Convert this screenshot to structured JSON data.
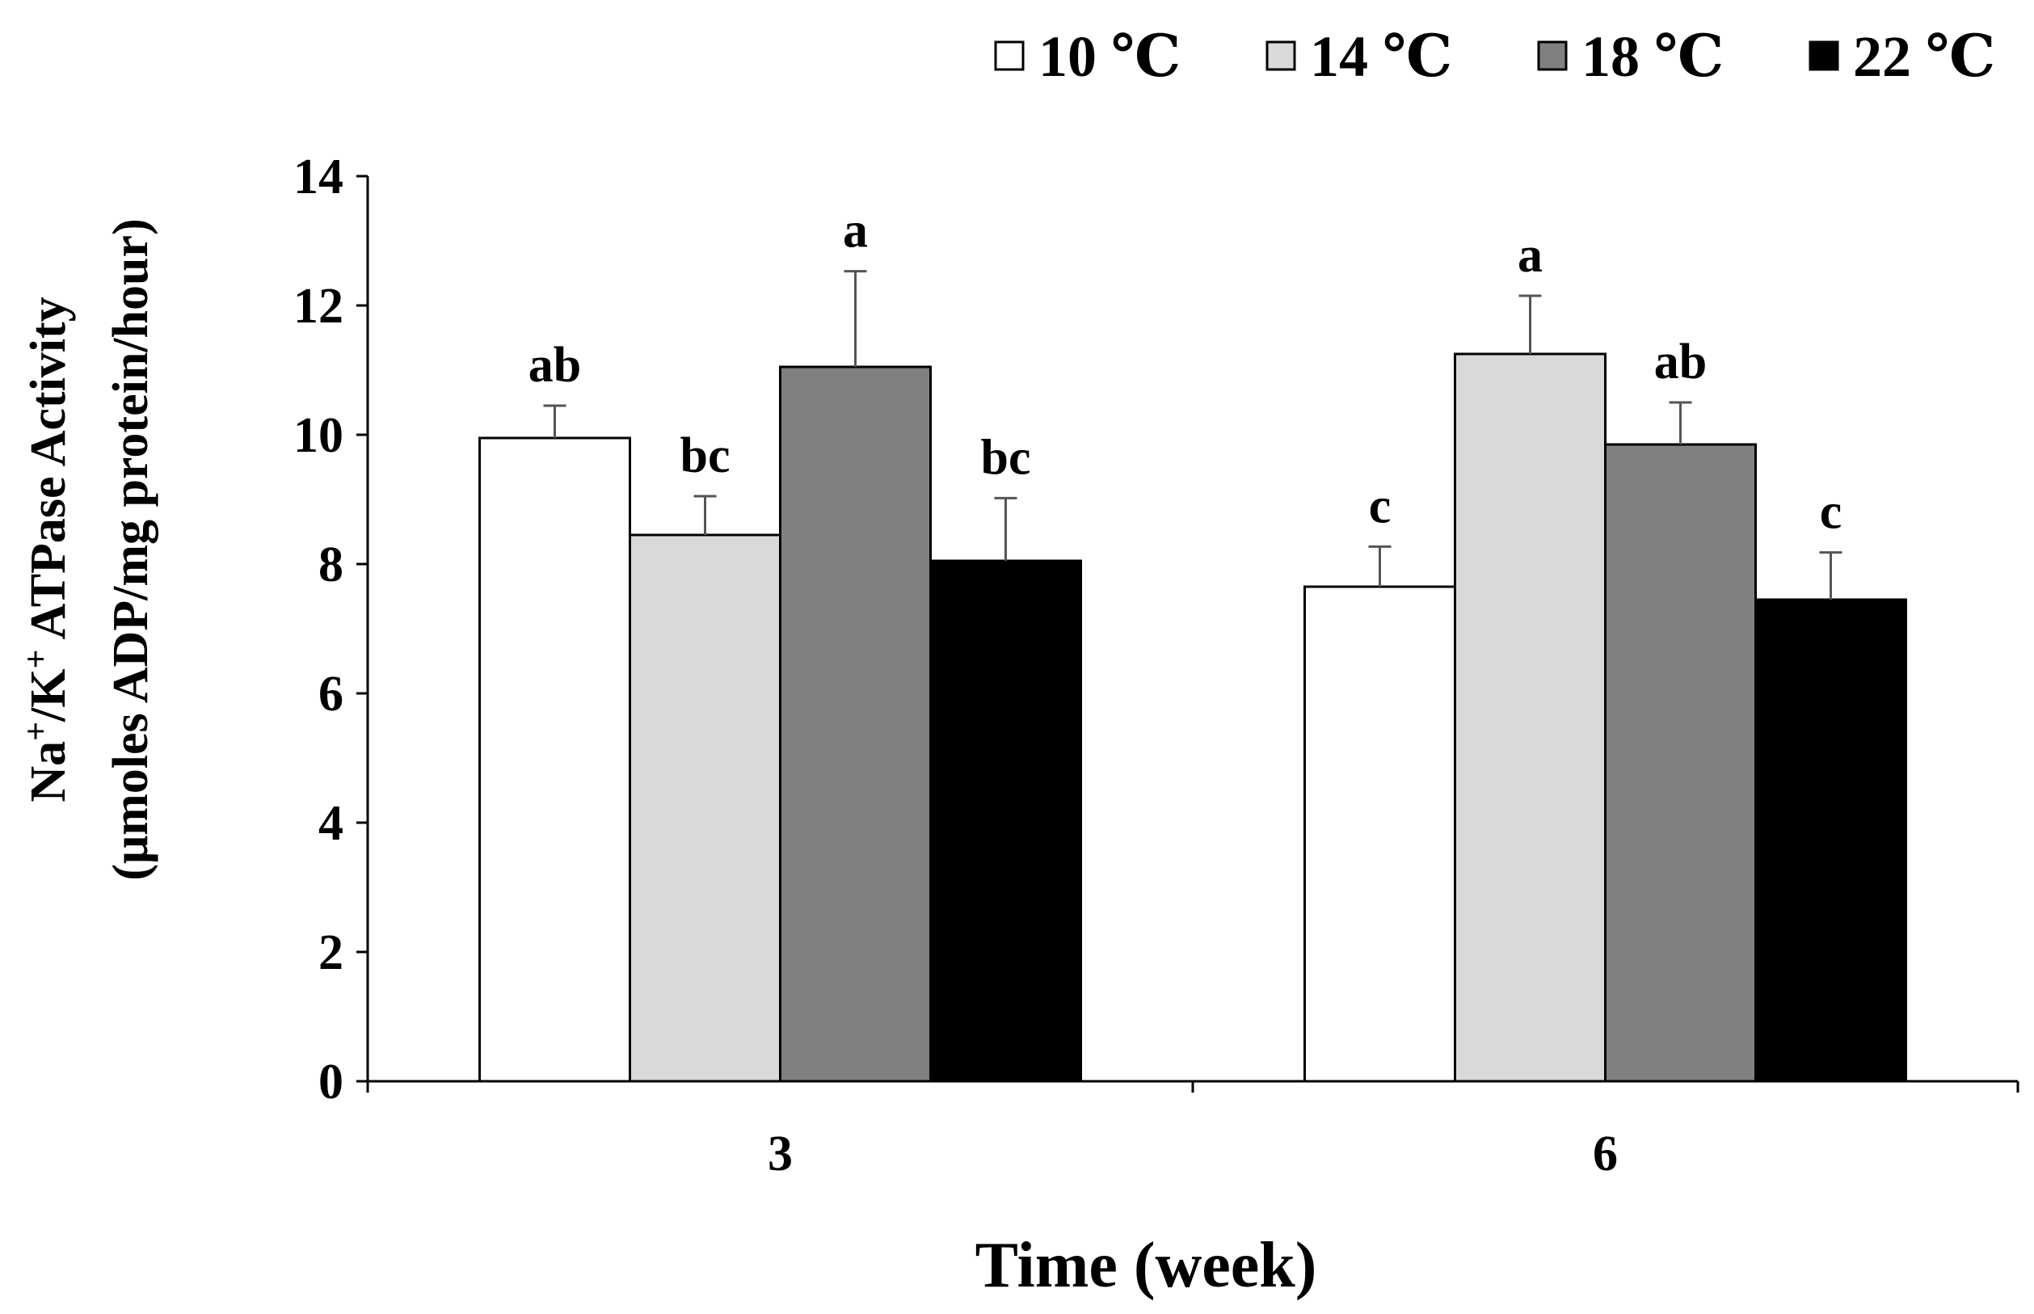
{
  "chart_data": {
    "type": "bar",
    "title": "",
    "xlabel": "Time (week)",
    "ylabel": {
      "line1": {
        "pre": "Na",
        "sup1": "+",
        "mid": "/K",
        "sup2": "+",
        "post": " ATPase Activity"
      },
      "line2": "(μmoles ADP/mg protein/hour)"
    },
    "ylim": [
      0,
      14
    ],
    "yticks": [
      0,
      2,
      4,
      6,
      8,
      10,
      12,
      14
    ],
    "categories": [
      "3",
      "6"
    ],
    "legend_position": "top-right",
    "series": [
      {
        "name": "10 ℃",
        "color": "#ffffff",
        "values": [
          9.95,
          7.65
        ],
        "errors": [
          0.5,
          0.62
        ],
        "letters": [
          "ab",
          "c"
        ]
      },
      {
        "name": "14 ℃",
        "color": "#d9d9d9",
        "values": [
          8.45,
          11.25
        ],
        "errors": [
          0.6,
          0.9
        ],
        "letters": [
          "bc",
          "a"
        ]
      },
      {
        "name": "18 ℃",
        "color": "#808080",
        "values": [
          11.05,
          9.85
        ],
        "errors": [
          1.48,
          0.65
        ],
        "letters": [
          "a",
          "ab"
        ]
      },
      {
        "name": "22 ℃",
        "color": "#000000",
        "values": [
          8.05,
          7.45
        ],
        "errors": [
          0.97,
          0.73
        ],
        "letters": [
          "bc",
          "c"
        ]
      }
    ]
  }
}
